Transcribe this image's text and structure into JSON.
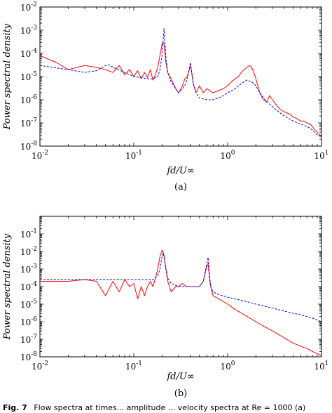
{
  "caption": {
    "prefix": "Fig. 7",
    "text": "Flow spectra at times... amplitude ... velocity spectra at Re = 1000 (a)"
  },
  "colors": {
    "measured": "#ff0000",
    "model": "#0000ff",
    "axes": "#000000"
  },
  "chart_data": [
    {
      "type": "line",
      "panel_label": "(a)",
      "xscale": "log",
      "yscale": "log",
      "xlim": [
        0.01,
        10
      ],
      "ylim": [
        1e-08,
        0.01
      ],
      "xlabel": "fd/U∞",
      "ylabel": "Power spectral density",
      "x_ticks": [
        0.01,
        0.1,
        1,
        10
      ],
      "x_tick_labels": [
        {
          "base": "10",
          "exp": "-2"
        },
        {
          "base": "10",
          "exp": "-1"
        },
        {
          "base": "10",
          "exp": "0"
        },
        {
          "base": "10",
          "exp": "1"
        }
      ],
      "y_ticks": [
        1e-08,
        1e-07,
        1e-06,
        1e-05,
        0.0001,
        0.001,
        0.01
      ],
      "y_tick_labels": [
        {
          "base": "10",
          "exp": "-8"
        },
        {
          "base": "10",
          "exp": "-7"
        },
        {
          "base": "10",
          "exp": "-6"
        },
        {
          "base": "10",
          "exp": "-5"
        },
        {
          "base": "10",
          "exp": "-4"
        },
        {
          "base": "10",
          "exp": "-3"
        },
        {
          "base": "10",
          "exp": "-2"
        }
      ],
      "series": [
        {
          "key": "measured",
          "style": "solid",
          "color": "#ff0000",
          "x": [
            0.01,
            0.015,
            0.02,
            0.03,
            0.04,
            0.05,
            0.06,
            0.07,
            0.08,
            0.09,
            0.1,
            0.11,
            0.12,
            0.13,
            0.14,
            0.15,
            0.16,
            0.17,
            0.18,
            0.19,
            0.2,
            0.205,
            0.21,
            0.215,
            0.22,
            0.23,
            0.25,
            0.28,
            0.3,
            0.33,
            0.35,
            0.37,
            0.39,
            0.4,
            0.41,
            0.43,
            0.46,
            0.5,
            0.55,
            0.6,
            0.7,
            0.8,
            0.9,
            1.0,
            1.1,
            1.2,
            1.3,
            1.4,
            1.5,
            1.6,
            1.7,
            1.8,
            1.9,
            2.0,
            2.2,
            2.4,
            2.6,
            2.8,
            3.0,
            3.3,
            3.6,
            4.0,
            4.5,
            5.0,
            5.5,
            6.0,
            6.5,
            7.0,
            7.5,
            8.0,
            8.5,
            9.0,
            9.5,
            10.0
          ],
          "y": [
            8e-05,
            4e-05,
            2e-05,
            3e-05,
            2.5e-05,
            2e-05,
            1.5e-05,
            3e-05,
            1.2e-05,
            2e-05,
            1e-05,
            1.8e-05,
            8e-06,
            1.5e-05,
            9e-06,
            2e-05,
            7e-06,
            1.2e-05,
            2.5e-05,
            8e-05,
            0.00025,
            0.0003,
            0.00025,
            0.0001,
            4e-05,
            1.5e-05,
            8e-06,
            3e-06,
            2e-06,
            4e-06,
            8e-06,
            1e-05,
            2e-05,
            3e-05,
            2e-05,
            5e-06,
            2e-06,
            4e-06,
            2e-06,
            3e-06,
            2e-06,
            2.5e-06,
            3e-06,
            4e-06,
            6e-06,
            8e-06,
            1e-05,
            1.5e-05,
            2e-05,
            2.5e-05,
            3e-05,
            2.5e-05,
            1.5e-05,
            8e-06,
            2e-06,
            1e-06,
            8e-07,
            1.5e-06,
            1e-06,
            6e-07,
            4e-07,
            3e-07,
            2.5e-07,
            1.8e-07,
            1.5e-07,
            1.2e-07,
            1.2e-07,
            1e-07,
            9e-08,
            7e-08,
            5e-08,
            4e-08,
            3e-08,
            2.5e-08
          ]
        },
        {
          "key": "model",
          "style": "dashed",
          "color": "#0000ff",
          "x": [
            0.01,
            0.02,
            0.03,
            0.04,
            0.05,
            0.055,
            0.06,
            0.08,
            0.1,
            0.12,
            0.14,
            0.16,
            0.18,
            0.19,
            0.2,
            0.205,
            0.21,
            0.215,
            0.22,
            0.23,
            0.25,
            0.28,
            0.3,
            0.33,
            0.36,
            0.39,
            0.4,
            0.41,
            0.43,
            0.46,
            0.5,
            0.6,
            0.7,
            0.8,
            0.9,
            1.0,
            1.2,
            1.4,
            1.6,
            1.8,
            2.0,
            2.2,
            2.5,
            3.0,
            3.5,
            4.0,
            5.0,
            6.0,
            7.0,
            8.0,
            9.0,
            10.0
          ],
          "y": [
            3e-05,
            2e-05,
            1.5e-05,
            1.8e-05,
            3e-05,
            3.2e-05,
            2.5e-05,
            1.5e-05,
            1e-05,
            9e-06,
            8e-06,
            8e-06,
            1e-05,
            2e-05,
            8e-05,
            0.0003,
            0.0012,
            0.0003,
            6e-05,
            1.5e-05,
            6e-06,
            3e-06,
            2e-06,
            3e-06,
            5e-06,
            2e-05,
            4e-05,
            2e-05,
            5e-06,
            2e-06,
            1.2e-06,
            1e-06,
            1e-06,
            1.2e-06,
            1.5e-06,
            2e-06,
            3e-06,
            5e-06,
            7e-06,
            6e-06,
            4e-06,
            2e-06,
            1e-06,
            5e-07,
            3e-07,
            2e-07,
            1.2e-07,
            9e-08,
            7e-08,
            5e-08,
            3e-08,
            2.5e-08
          ]
        }
      ]
    },
    {
      "type": "line",
      "panel_label": "(b)",
      "xscale": "log",
      "yscale": "log",
      "xlim": [
        0.01,
        10
      ],
      "ylim": [
        1e-08,
        1
      ],
      "xlabel": "fd/U∞",
      "ylabel": "Power spectral density",
      "x_ticks": [
        0.01,
        0.1,
        1,
        10
      ],
      "x_tick_labels": [
        {
          "base": "10",
          "exp": "-2"
        },
        {
          "base": "10",
          "exp": "-1"
        },
        {
          "base": "10",
          "exp": "0"
        },
        {
          "base": "10",
          "exp": "1"
        }
      ],
      "y_ticks": [
        1e-08,
        1e-07,
        1e-06,
        1e-05,
        0.0001,
        0.001,
        0.01,
        0.1
      ],
      "y_tick_labels": [
        {
          "base": "10",
          "exp": "-8"
        },
        {
          "base": "10",
          "exp": "-7"
        },
        {
          "base": "10",
          "exp": "-6"
        },
        {
          "base": "10",
          "exp": "-5"
        },
        {
          "base": "10",
          "exp": "-4"
        },
        {
          "base": "10",
          "exp": "-3"
        },
        {
          "base": "10",
          "exp": "-2"
        },
        {
          "base": "10",
          "exp": "-1"
        }
      ],
      "series": [
        {
          "key": "measured",
          "style": "solid",
          "color": "#ff0000",
          "x": [
            0.01,
            0.02,
            0.03,
            0.04,
            0.05,
            0.06,
            0.07,
            0.08,
            0.09,
            0.1,
            0.11,
            0.12,
            0.13,
            0.14,
            0.15,
            0.16,
            0.17,
            0.18,
            0.19,
            0.2,
            0.205,
            0.21,
            0.22,
            0.23,
            0.25,
            0.28,
            0.3,
            0.33,
            0.36,
            0.4,
            0.45,
            0.5,
            0.55,
            0.6,
            0.62,
            0.64,
            0.66,
            0.7,
            0.8,
            1.0,
            1.2,
            1.5,
            2.0,
            2.5,
            3.0,
            4.0,
            5.0,
            6.0,
            7.0,
            8.0,
            9.0,
            10.0
          ],
          "y": [
            0.0002,
            0.0002,
            0.00025,
            0.0002,
            3e-05,
            0.0002,
            5e-05,
            0.00025,
            0.0001,
            0.00015,
            2e-05,
            0.0001,
            3e-05,
            0.0001,
            0.0002,
            0.0001,
            0.0003,
            0.001,
            0.005,
            0.012,
            0.01,
            0.006,
            0.001,
            0.0002,
            5e-05,
            0.0001,
            0.0001,
            0.00015,
            0.0001,
            0.0001,
            0.0001,
            0.0001,
            0.0002,
            0.0015,
            0.002,
            0.0003,
            0.0001,
            3e-05,
            2e-05,
            1e-05,
            5e-06,
            2.5e-06,
            1e-06,
            5e-07,
            3e-07,
            1.2e-07,
            6e-08,
            4e-08,
            3e-08,
            2e-08,
            1.5e-08,
            1.2e-08
          ]
        },
        {
          "key": "model",
          "style": "dashed",
          "color": "#0000ff",
          "x": [
            0.01,
            0.03,
            0.05,
            0.07,
            0.1,
            0.13,
            0.16,
            0.18,
            0.19,
            0.2,
            0.205,
            0.21,
            0.22,
            0.23,
            0.25,
            0.3,
            0.4,
            0.5,
            0.55,
            0.6,
            0.62,
            0.64,
            0.66,
            0.7,
            0.8,
            1.0,
            1.5,
            2.0,
            3.0,
            4.0,
            5.0,
            6.0,
            8.0,
            10.0
          ],
          "y": [
            0.00025,
            0.00025,
            0.00025,
            0.00025,
            0.00025,
            0.00025,
            0.00025,
            0.0004,
            0.001,
            0.005,
            0.008,
            0.005,
            0.001,
            0.0003,
            0.00015,
            0.0001,
            0.0001,
            0.0001,
            0.0002,
            0.002,
            0.0045,
            0.0005,
            0.0001,
            5e-05,
            3.5e-05,
            2.5e-05,
            1.5e-05,
            1e-05,
            6e-06,
            4e-06,
            3e-06,
            2.5e-06,
            1.6e-06,
            1e-06
          ]
        }
      ]
    }
  ]
}
